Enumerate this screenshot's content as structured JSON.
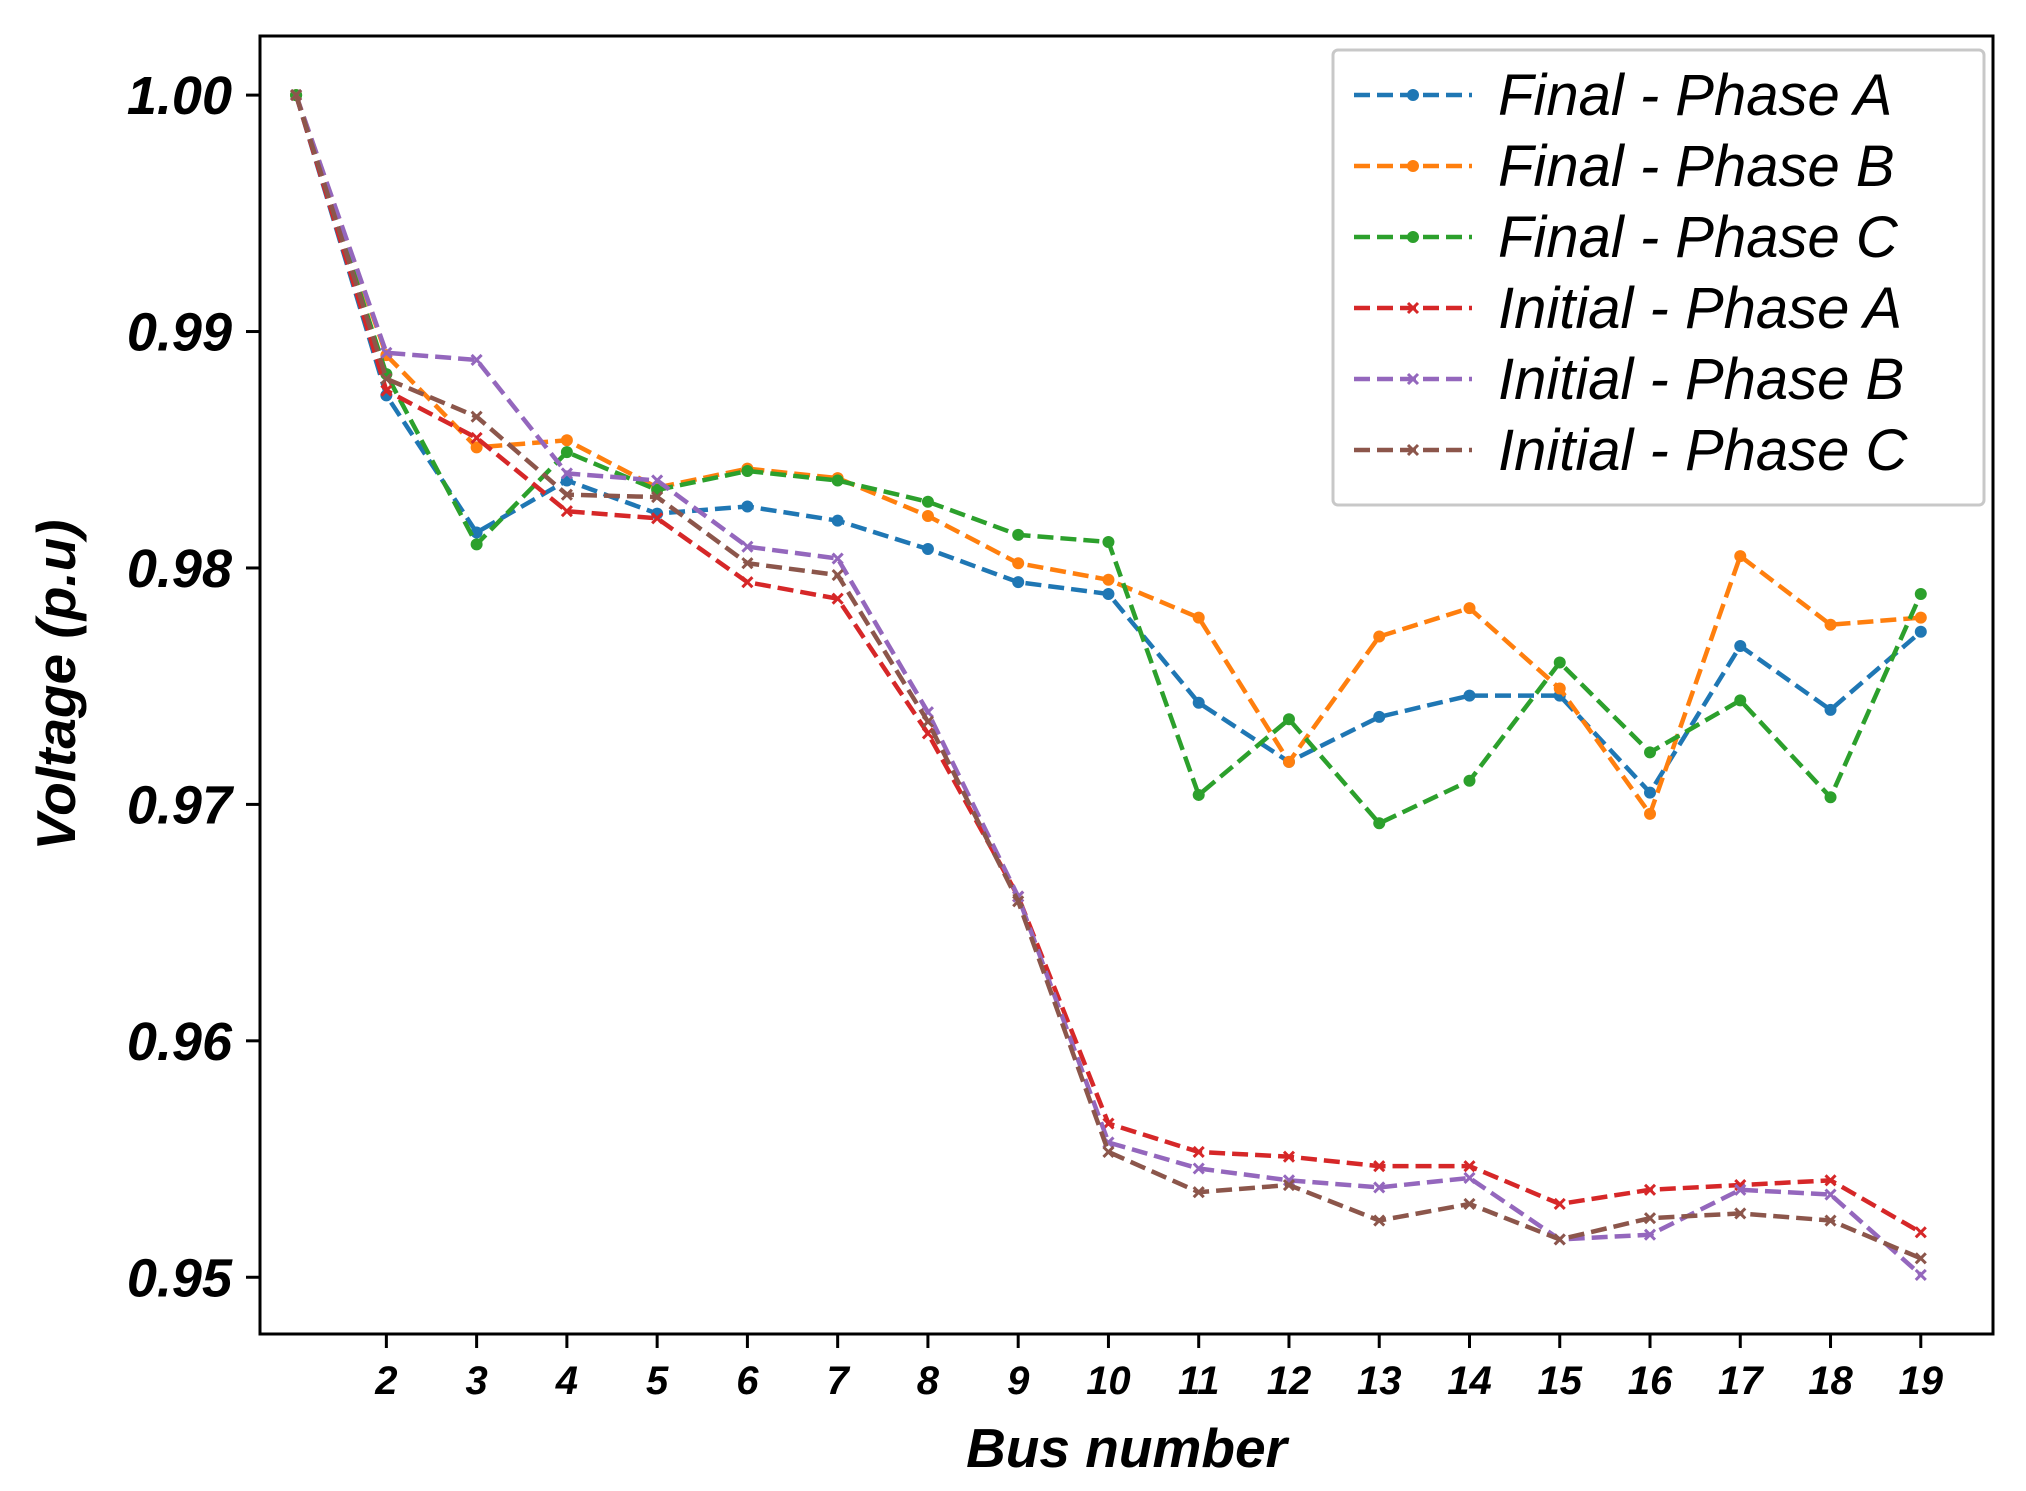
{
  "chart_data": {
    "type": "line",
    "title": "",
    "xlabel": "Bus number",
    "ylabel": "Voltage (p.u)",
    "x": [
      1,
      2,
      3,
      4,
      5,
      6,
      7,
      8,
      9,
      10,
      11,
      12,
      13,
      14,
      15,
      16,
      17,
      18,
      19
    ],
    "x_tick_labels": [
      "2",
      "3",
      "4",
      "5",
      "6",
      "7",
      "8",
      "9",
      "10",
      "11",
      "12",
      "13",
      "14",
      "15",
      "16",
      "17",
      "18",
      "19"
    ],
    "y_tick_labels": [
      "0.95",
      "0.96",
      "0.97",
      "0.98",
      "0.99",
      "1.00"
    ],
    "xlim": [
      0.6,
      19.8
    ],
    "ylim": [
      0.9476,
      1.0025
    ],
    "grid": false,
    "legend_position": "top-right",
    "series": [
      {
        "name": "Final - Phase A",
        "color": "#1f77b4",
        "marker": "circle",
        "values": [
          1.0,
          0.9873,
          0.9815,
          0.9837,
          0.9823,
          0.9826,
          0.982,
          0.9808,
          0.9794,
          0.9789,
          0.9743,
          0.9718,
          0.9737,
          0.9746,
          0.9746,
          0.9705,
          0.9767,
          0.974,
          0.9773
        ]
      },
      {
        "name": "Final - Phase B",
        "color": "#ff7f0e",
        "marker": "circle",
        "values": [
          1.0,
          0.989,
          0.9851,
          0.9854,
          0.9834,
          0.9842,
          0.9838,
          0.9822,
          0.9802,
          0.9795,
          0.9779,
          0.9718,
          0.9771,
          0.9783,
          0.9749,
          0.9696,
          0.9805,
          0.9776,
          0.9779
        ]
      },
      {
        "name": "Final - Phase C",
        "color": "#2ca02c",
        "marker": "circle",
        "values": [
          1.0,
          0.9882,
          0.981,
          0.9849,
          0.9833,
          0.9841,
          0.9837,
          0.9828,
          0.9814,
          0.9811,
          0.9704,
          0.9736,
          0.9692,
          0.971,
          0.976,
          0.9722,
          0.9744,
          0.9703,
          0.9789
        ]
      },
      {
        "name": "Initial - Phase A",
        "color": "#d62728",
        "marker": "x",
        "values": [
          1.0,
          0.9875,
          0.9855,
          0.9824,
          0.9821,
          0.9794,
          0.9787,
          0.973,
          0.9661,
          0.9565,
          0.9553,
          0.9551,
          0.9547,
          0.9547,
          0.9531,
          0.9537,
          0.9539,
          0.9541,
          0.9519
        ]
      },
      {
        "name": "Initial - Phase B",
        "color": "#9467bd",
        "marker": "x",
        "values": [
          1.0,
          0.9891,
          0.9888,
          0.984,
          0.9837,
          0.9809,
          0.9804,
          0.9739,
          0.9661,
          0.9557,
          0.9546,
          0.9541,
          0.9538,
          0.9542,
          0.9516,
          0.9518,
          0.9537,
          0.9535,
          0.9501
        ]
      },
      {
        "name": "Initial - Phase C",
        "color": "#8c564b",
        "marker": "x",
        "values": [
          1.0,
          0.988,
          0.9864,
          0.9831,
          0.983,
          0.9802,
          0.9797,
          0.9735,
          0.9659,
          0.9553,
          0.9536,
          0.9539,
          0.9524,
          0.9531,
          0.9516,
          0.9525,
          0.9527,
          0.9524,
          0.9508
        ]
      }
    ]
  }
}
